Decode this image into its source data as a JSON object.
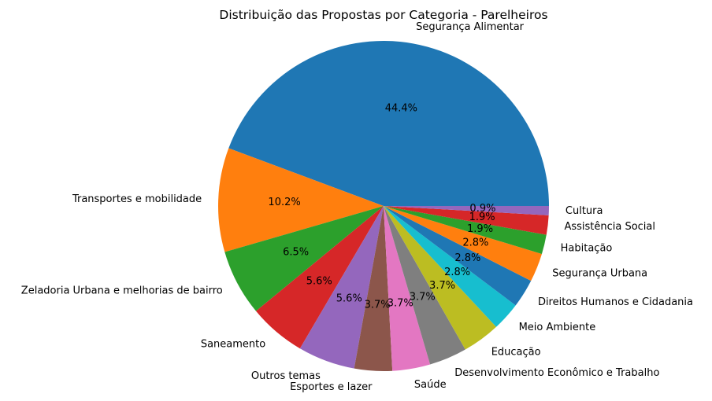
{
  "chart_data": {
    "type": "pie",
    "title": "Distribuição das Propostas por Categoria - Parelheiros",
    "slices": [
      {
        "label": "Segurança Alimentar",
        "value": 44.4,
        "pct_label": "44.4%",
        "color": "#1f77b4"
      },
      {
        "label": "Transportes e mobilidade",
        "value": 10.2,
        "pct_label": "10.2%",
        "color": "#ff7f0e"
      },
      {
        "label": "Zeladoria Urbana e melhorias de bairro",
        "value": 6.5,
        "pct_label": "6.5%",
        "color": "#2ca02c"
      },
      {
        "label": "Saneamento",
        "value": 5.6,
        "pct_label": "5.6%",
        "color": "#d62728"
      },
      {
        "label": "Outros temas",
        "value": 5.6,
        "pct_label": "5.6%",
        "color": "#9467bd"
      },
      {
        "label": "Esportes e lazer",
        "value": 3.7,
        "pct_label": "3.7%",
        "color": "#8c564b"
      },
      {
        "label": "Saúde",
        "value": 3.7,
        "pct_label": "3.7%",
        "color": "#e377c2"
      },
      {
        "label": "Desenvolvimento Econômico e Trabalho",
        "value": 3.7,
        "pct_label": "3.7%",
        "color": "#7f7f7f"
      },
      {
        "label": "Educação",
        "value": 3.7,
        "pct_label": "3.7%",
        "color": "#bcbd22"
      },
      {
        "label": "Meio Ambiente",
        "value": 2.8,
        "pct_label": "2.8%",
        "color": "#17becf"
      },
      {
        "label": "Direitos Humanos e Cidadania",
        "value": 2.8,
        "pct_label": "2.8%",
        "color": "#1f77b4"
      },
      {
        "label": "Segurança Urbana",
        "value": 2.8,
        "pct_label": "2.8%",
        "color": "#ff7f0e"
      },
      {
        "label": "Habitação",
        "value": 1.9,
        "pct_label": "1.9%",
        "color": "#2ca02c"
      },
      {
        "label": "Assistência Social",
        "value": 1.9,
        "pct_label": "1.9%",
        "color": "#d62728"
      },
      {
        "label": "Cultura",
        "value": 0.9,
        "pct_label": "0.9%",
        "color": "#9467bd"
      }
    ]
  }
}
